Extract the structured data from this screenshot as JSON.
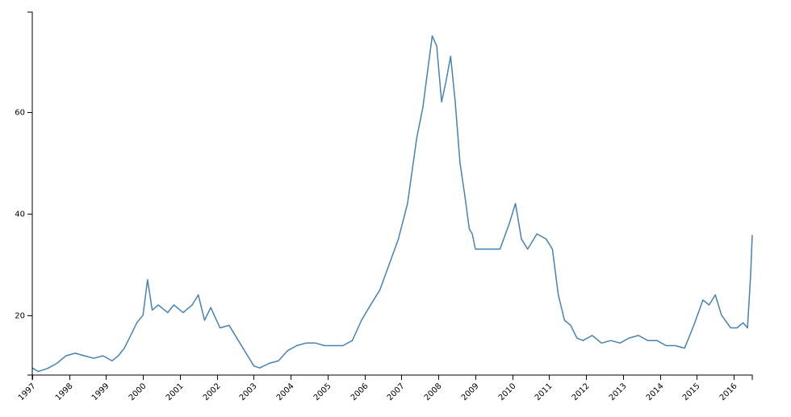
{
  "chart_data": {
    "type": "line",
    "title": "",
    "xlabel": "",
    "ylabel": "",
    "x_ticks": [
      "1997",
      "1998",
      "1999",
      "2000",
      "2001",
      "2002",
      "2003",
      "2004",
      "2005",
      "2006",
      "2007",
      "2008",
      "2009",
      "2010",
      "2011",
      "2012",
      "2013",
      "2014",
      "2015",
      "2016"
    ],
    "y_ticks": [
      20,
      40,
      60
    ],
    "xlim": [
      "1997-01-01",
      "2016-07-01"
    ],
    "ylim": [
      8.2,
      79.7
    ],
    "grid": false,
    "colors": {
      "line": "#4682b4",
      "axis": "#000000"
    },
    "series": [
      {
        "x": [
          "1997-01-01",
          "1997-03-01",
          "1997-06-01",
          "1997-09-01",
          "1997-12-01",
          "1998-03-01",
          "1998-06-01",
          "1998-09-01",
          "1998-12-01",
          "1999-03-01",
          "1999-05-01",
          "1999-07-01",
          "1999-09-01",
          "1999-11-01",
          "2000-01-01",
          "2000-02-15",
          "2000-04-01",
          "2000-06-01",
          "2000-09-01",
          "2000-11-01",
          "2001-02-01",
          "2001-05-01",
          "2001-07-01",
          "2001-09-01",
          "2001-11-01",
          "2002-02-01",
          "2002-05-01",
          "2002-08-01",
          "2002-11-01",
          "2003-01-01",
          "2003-03-01",
          "2003-06-01",
          "2003-09-01",
          "2003-12-01",
          "2004-03-01",
          "2004-06-01",
          "2004-09-01",
          "2004-12-01",
          "2005-03-01",
          "2005-06-01",
          "2005-09-01",
          "2005-12-01",
          "2006-03-01",
          "2006-06-01",
          "2006-09-01",
          "2006-12-01",
          "2007-03-01",
          "2007-06-01",
          "2007-08-01",
          "2007-09-15",
          "2007-11-01",
          "2007-12-15",
          "2008-02-01",
          "2008-03-15",
          "2008-05-01",
          "2008-06-15",
          "2008-08-01",
          "2008-09-15",
          "2008-11-01",
          "2008-12-01",
          "2009-01-01",
          "2009-03-01",
          "2009-06-01",
          "2009-09-01",
          "2009-12-01",
          "2010-02-01",
          "2010-04-01",
          "2010-06-01",
          "2010-09-01",
          "2010-12-01",
          "2011-02-01",
          "2011-04-01",
          "2011-06-01",
          "2011-08-01",
          "2011-10-01",
          "2011-12-01",
          "2012-03-01",
          "2012-06-01",
          "2012-09-01",
          "2012-12-01",
          "2013-03-01",
          "2013-06-01",
          "2013-09-01",
          "2013-12-01",
          "2014-03-01",
          "2014-06-01",
          "2014-09-01",
          "2014-12-01",
          "2015-03-01",
          "2015-05-01",
          "2015-07-01",
          "2015-09-01",
          "2015-12-01",
          "2016-02-01",
          "2016-04-01",
          "2016-05-15",
          "2016-06-15",
          "2016-07-01"
        ],
        "values": [
          9.6,
          8.9,
          9.5,
          10.5,
          12.0,
          12.5,
          12.0,
          11.5,
          12.0,
          11.0,
          12.0,
          13.5,
          16.0,
          18.5,
          20.0,
          27.0,
          21.0,
          22.0,
          20.5,
          22.0,
          20.5,
          22.0,
          24.0,
          19.0,
          21.5,
          17.5,
          18.0,
          15.0,
          12.0,
          10.0,
          9.6,
          10.5,
          11.0,
          13.0,
          14.0,
          14.5,
          14.5,
          14.0,
          14.0,
          14.0,
          15.0,
          19.0,
          22.0,
          25.0,
          30.0,
          35.0,
          42.0,
          55.0,
          61.0,
          68.0,
          75.0,
          73.0,
          62.0,
          66.0,
          71.0,
          62.0,
          50.0,
          44.0,
          37.0,
          36.0,
          33.0,
          33.0,
          33.0,
          33.0,
          38.0,
          42.0,
          35.0,
          33.0,
          36.0,
          35.0,
          33.0,
          24.0,
          19.0,
          18.0,
          15.5,
          15.0,
          16.0,
          14.5,
          15.0,
          14.5,
          15.5,
          16.0,
          15.0,
          15.0,
          14.0,
          14.0,
          13.5,
          18.0,
          23.0,
          22.0,
          24.0,
          20.0,
          17.5,
          17.5,
          18.5,
          17.5,
          28.0,
          35.8
        ]
      }
    ]
  }
}
